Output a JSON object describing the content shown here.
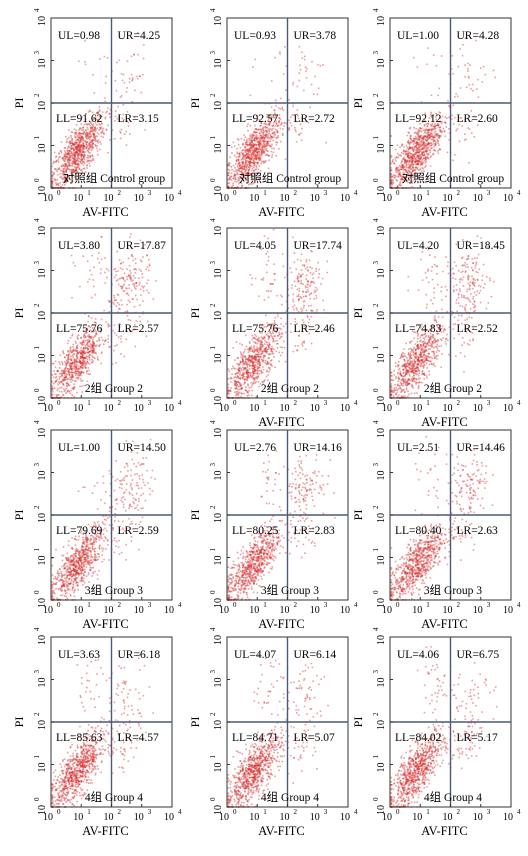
{
  "figure": {
    "xlabel": "AV-FITC",
    "ylabel": "PI",
    "tick_labels": [
      "10",
      "10",
      "10",
      "10",
      "10"
    ],
    "tick_exponents": [
      "0",
      "1",
      "2",
      "3",
      "4"
    ]
  },
  "chart_data": [
    {
      "type": "scatter",
      "group_label": "对照组 Control group",
      "quadrants": {
        "UL": "UL=0.98",
        "UR": "UR=4.25",
        "LL": "LL=91.62",
        "LR": "LR=3.15"
      },
      "xlabel": "AV-FITC",
      "ylabel": "PI",
      "xlim": [
        1,
        10000
      ],
      "ylim": [
        1,
        10000
      ],
      "log_scale": true,
      "point_color": "#d42a2a"
    },
    {
      "type": "scatter",
      "group_label": "对照组 Control group",
      "quadrants": {
        "UL": "UL=0.93",
        "UR": "UR=3.78",
        "LL": "LL=92.57",
        "LR": "LR=2.72"
      },
      "xlabel": "AV-FITC",
      "ylabel": "PI",
      "xlim": [
        1,
        10000
      ],
      "ylim": [
        1,
        10000
      ],
      "log_scale": true,
      "point_color": "#d42a2a"
    },
    {
      "type": "scatter",
      "group_label": "对照组 Control group",
      "quadrants": {
        "UL": "UL=1.00",
        "UR": "UR=4.28",
        "LL": "LL=92.12",
        "LR": "LR=2.60"
      },
      "xlabel": "AV-FITC",
      "ylabel": "PI",
      "xlim": [
        1,
        10000
      ],
      "ylim": [
        1,
        10000
      ],
      "log_scale": true,
      "point_color": "#d42a2a"
    },
    {
      "type": "scatter",
      "group_label": "2组 Group 2",
      "quadrants": {
        "UL": "UL=3.80",
        "UR": "UR=17.87",
        "LL": "LL=75.76",
        "LR": "LR=2.57"
      },
      "xlabel": "",
      "ylabel": "PI",
      "xlim": [
        1,
        10000
      ],
      "ylim": [
        1,
        10000
      ],
      "log_scale": true,
      "point_color": "#d42a2a"
    },
    {
      "type": "scatter",
      "group_label": "2组 Group 2",
      "quadrants": {
        "UL": "UL=4.05",
        "UR": "UR=17.74",
        "LL": "LL=75.76",
        "LR": "LR=2.46"
      },
      "xlabel": "AV-FITC",
      "ylabel": "PI",
      "xlim": [
        1,
        10000
      ],
      "ylim": [
        1,
        10000
      ],
      "log_scale": true,
      "point_color": "#d42a2a"
    },
    {
      "type": "scatter",
      "group_label": "2组 Group 2",
      "quadrants": {
        "UL": "UL=4.20",
        "UR": "UR=18.45",
        "LL": "LL=74.83",
        "LR": "LR=2.52"
      },
      "xlabel": "AV-FITC",
      "ylabel": "PI",
      "xlim": [
        1,
        10000
      ],
      "ylim": [
        1,
        10000
      ],
      "log_scale": true,
      "point_color": "#d42a2a"
    },
    {
      "type": "scatter",
      "group_label": "3组 Group 3",
      "quadrants": {
        "UL": "UL=1.00",
        "UR": "UR=14.50",
        "LL": "LL=79.69",
        "LR": "LR=2.59"
      },
      "xlabel": "AV-FITC",
      "ylabel": "PI",
      "xlim": [
        1,
        10000
      ],
      "ylim": [
        1,
        10000
      ],
      "log_scale": true,
      "point_color": "#d42a2a"
    },
    {
      "type": "scatter",
      "group_label": "3组 Group 3",
      "quadrants": {
        "UL": "UL=2.76",
        "UR": "UR=14.16",
        "LL": "LL=80.25",
        "LR": "LR=2.83"
      },
      "xlabel": "AV-FITC",
      "ylabel": "PI",
      "xlim": [
        1,
        10000
      ],
      "ylim": [
        1,
        10000
      ],
      "log_scale": true,
      "point_color": "#d42a2a"
    },
    {
      "type": "scatter",
      "group_label": "3组 Group 3",
      "quadrants": {
        "UL": "UL=2.51",
        "UR": "UR=14.46",
        "LL": "LL=80.40",
        "LR": "LR=2.63"
      },
      "xlabel": "AV-FITC",
      "ylabel": "PI",
      "xlim": [
        1,
        10000
      ],
      "ylim": [
        1,
        10000
      ],
      "log_scale": true,
      "point_color": "#d42a2a"
    },
    {
      "type": "scatter",
      "group_label": "4组 Group 4",
      "quadrants": {
        "UL": "UL=3.63",
        "UR": "UR=6.18",
        "LL": "LL=85.63",
        "LR": "LR=4.57"
      },
      "xlabel": "AV-FITC",
      "ylabel": "PI",
      "xlim": [
        1,
        10000
      ],
      "ylim": [
        1,
        10000
      ],
      "log_scale": true,
      "point_color": "#d42a2a"
    },
    {
      "type": "scatter",
      "group_label": "4组 Group 4",
      "quadrants": {
        "UL": "UL=4.07",
        "UR": "UR=6.14",
        "LL": "LL=84.71",
        "LR": "LR=5.07"
      },
      "xlabel": "AV-FITC",
      "ylabel": "PI",
      "xlim": [
        1,
        10000
      ],
      "ylim": [
        1,
        10000
      ],
      "log_scale": true,
      "point_color": "#d42a2a"
    },
    {
      "type": "scatter",
      "group_label": "4组 Group 4",
      "quadrants": {
        "UL": "UL=4.06",
        "UR": "UR=6.75",
        "LL": "LL=84.02",
        "LR": "LR=5.17"
      },
      "xlabel": "AV-FITC",
      "ylabel": "PI",
      "xlim": [
        1,
        10000
      ],
      "ylim": [
        1,
        10000
      ],
      "log_scale": true,
      "point_color": "#d42a2a"
    }
  ]
}
